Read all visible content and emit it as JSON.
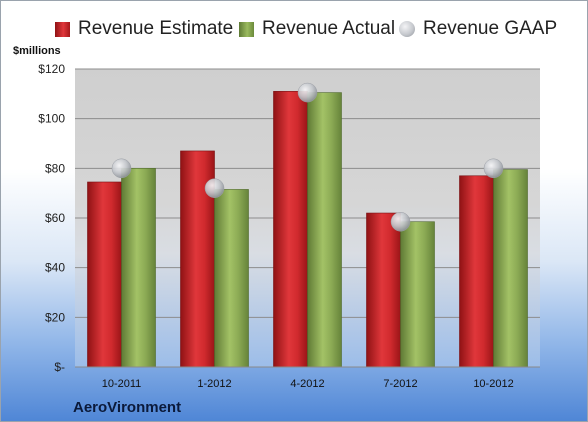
{
  "legend": {
    "estimate": "Revenue Estimate",
    "actual": "Revenue Actual",
    "gaap": "Revenue GAAP"
  },
  "unit_label": "$millions",
  "company": "AeroVironment",
  "colors": {
    "estimate": "#d9262b",
    "actual": "#8cab55",
    "gaap": "#c3c6cb",
    "plot_bg": "#d3d3d3"
  },
  "chart_data": {
    "type": "bar",
    "categories": [
      "10-2011",
      "1-2012",
      "4-2012",
      "7-2012",
      "10-2012"
    ],
    "series": [
      {
        "name": "Revenue Estimate",
        "type": "bar",
        "values": [
          74.5,
          87,
          111,
          62,
          77
        ]
      },
      {
        "name": "Revenue Actual",
        "type": "bar",
        "values": [
          80,
          71.5,
          110.5,
          58.5,
          79.5
        ]
      },
      {
        "name": "Revenue GAAP",
        "type": "scatter",
        "values": [
          80,
          72,
          110.5,
          58.5,
          80
        ]
      }
    ],
    "ylim": [
      0,
      120
    ],
    "yticks": [
      0,
      20,
      40,
      60,
      80,
      100,
      120
    ],
    "ytick_labels": [
      "$-",
      "$20",
      "$40",
      "$60",
      "$80",
      "$100",
      "$120"
    ],
    "xlabel": "",
    "ylabel": "$millions",
    "grid": true,
    "legend_position": "top"
  }
}
